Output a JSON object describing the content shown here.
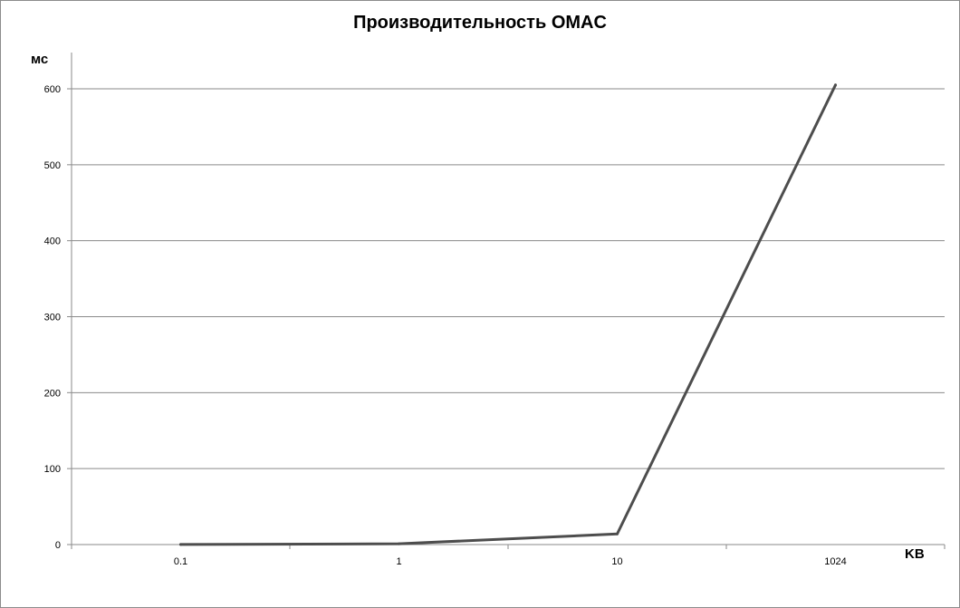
{
  "chart_data": {
    "type": "line",
    "title": "Производительность OMAC",
    "ylabel": "мс",
    "xlabel": "KB",
    "categories": [
      "0.1",
      "1",
      "10",
      "1024"
    ],
    "series": [
      {
        "values": [
          0.1,
          1,
          14,
          605
        ],
        "color": "#4d4d4d"
      }
    ],
    "yticks": [
      0,
      100,
      200,
      300,
      400,
      500,
      600
    ],
    "ylim": [
      0,
      600
    ],
    "grid": true,
    "legend": "none"
  }
}
